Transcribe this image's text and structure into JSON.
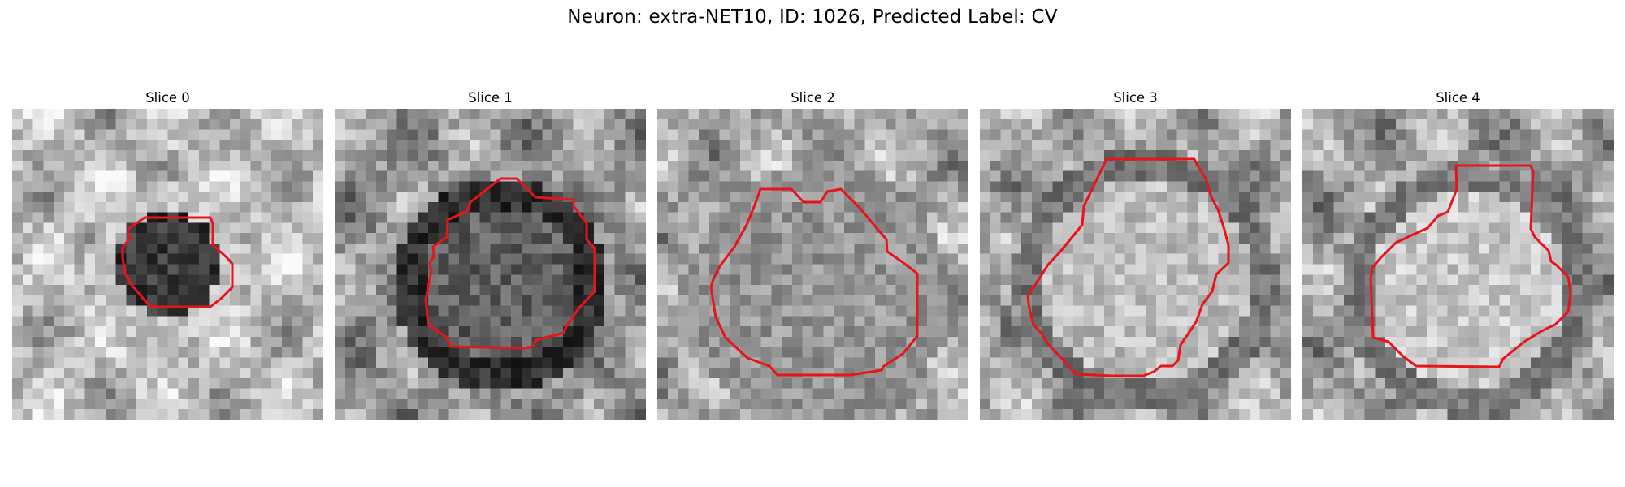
{
  "figure": {
    "title": "Neuron: extra-NET10, ID: 1026, Predicted Label: CV",
    "contour_color": "#e8141a",
    "panels": [
      {
        "title": "Slice 0"
      },
      {
        "title": "Slice 1"
      },
      {
        "title": "Slice 2"
      },
      {
        "title": "Slice 3"
      },
      {
        "title": "Slice 4"
      }
    ]
  }
}
